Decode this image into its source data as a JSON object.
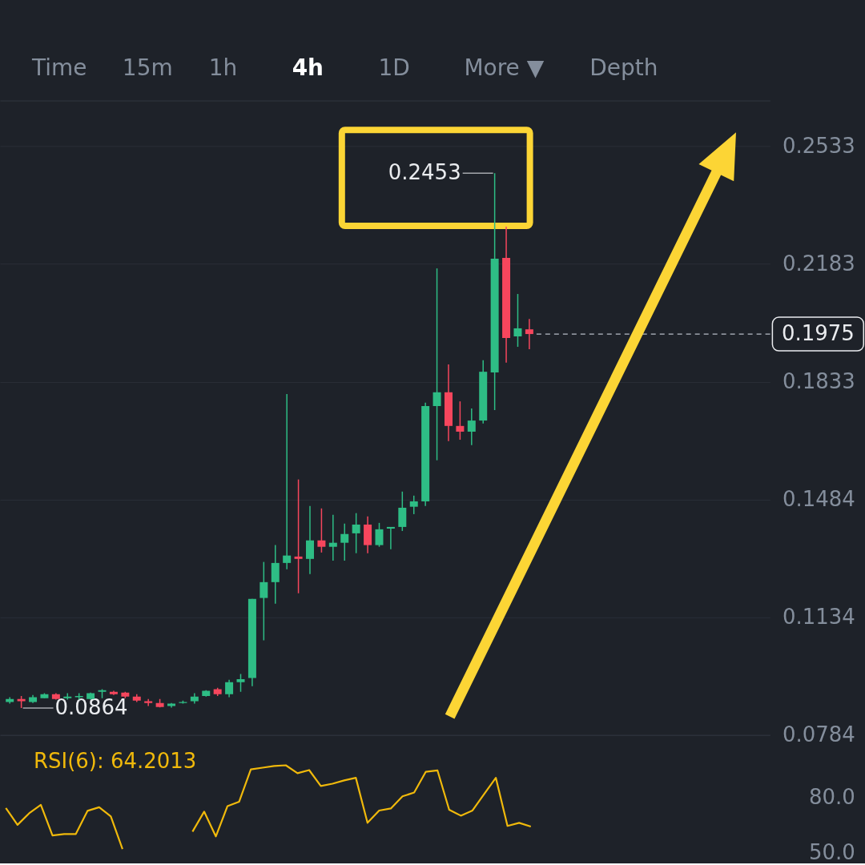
{
  "chart_data": [
    {
      "type": "other",
      "annotations": [
        "Time",
        "15m",
        "1h",
        "4h",
        "1D",
        "More ▼",
        "Depth"
      ],
      "colors": [
        "#848e9c",
        "#848e9c",
        "#848e9c",
        "#ffffff",
        "#848e9c",
        "#848e9c",
        "#848e9c"
      ]
    },
    {
      "type": "candlestick",
      "categories": [
        null,
        null,
        null,
        null,
        null,
        null,
        null,
        null,
        null,
        null,
        null,
        null,
        null,
        null,
        null,
        null,
        null,
        null,
        null,
        null,
        null,
        null,
        null,
        null,
        null,
        null,
        null,
        null,
        null,
        null,
        null,
        null,
        null,
        null,
        null,
        null,
        null,
        null,
        null,
        null,
        null,
        null,
        null,
        null,
        null,
        null,
        null,
        null,
        null,
        null,
        null,
        null,
        null,
        null,
        null,
        null,
        null,
        null,
        null,
        null,
        null,
        null,
        null,
        null,
        null,
        null
      ],
      "ohlc": [
        [
          0.0882,
          0.0896,
          0.0877,
          0.0891
        ],
        [
          0.0891,
          0.09,
          0.0864,
          0.0884
        ],
        [
          0.0882,
          0.0903,
          0.0879,
          0.0896
        ],
        [
          0.0893,
          0.0908,
          0.0893,
          0.0905
        ],
        [
          0.0905,
          0.0908,
          0.0889,
          0.0891
        ],
        [
          0.0893,
          0.0908,
          0.0889,
          0.0898
        ],
        [
          0.0896,
          0.0908,
          0.0889,
          0.09
        ],
        [
          0.0891,
          0.091,
          0.0889,
          0.0908
        ],
        [
          0.0912,
          0.092,
          0.0893,
          0.0917
        ],
        [
          0.0912,
          0.0915,
          0.0903,
          0.0905
        ],
        [
          0.091,
          0.0912,
          0.0893,
          0.0898
        ],
        [
          0.0898,
          0.0905,
          0.0882,
          0.0886
        ],
        [
          0.0884,
          0.0891,
          0.087,
          0.0879
        ],
        [
          0.0879,
          0.0891,
          0.0866,
          0.0867
        ],
        [
          0.087,
          0.0879,
          0.0865,
          0.0877
        ],
        [
          0.0879,
          0.0886,
          0.0877,
          0.0882
        ],
        [
          0.0884,
          0.0908,
          0.0877,
          0.0898
        ],
        [
          0.09,
          0.0917,
          0.0898,
          0.0915
        ],
        [
          0.092,
          0.0924,
          0.09,
          0.0905
        ],
        [
          0.0905,
          0.0948,
          0.0896,
          0.0941
        ],
        [
          0.0941,
          0.0965,
          0.0912,
          0.095
        ],
        [
          0.0953,
          0.1188,
          0.0929,
          0.1188
        ],
        [
          0.1191,
          0.1298,
          0.1065,
          0.1238
        ],
        [
          0.1238,
          0.1348,
          0.1174,
          0.1295
        ],
        [
          0.1295,
          0.1797,
          0.1276,
          0.1317
        ],
        [
          0.1314,
          0.1543,
          0.1205,
          0.1307
        ],
        [
          0.1307,
          0.1464,
          0.1262,
          0.1362
        ],
        [
          0.1362,
          0.1457,
          0.1326,
          0.1343
        ],
        [
          0.1343,
          0.1438,
          0.1302,
          0.1355
        ],
        [
          0.1355,
          0.1412,
          0.1302,
          0.1381
        ],
        [
          0.1383,
          0.1443,
          0.1324,
          0.1409
        ],
        [
          0.1409,
          0.1433,
          0.1324,
          0.1348
        ],
        [
          0.1348,
          0.1414,
          0.1343,
          0.1395
        ],
        [
          0.1397,
          0.1402,
          0.1336,
          0.1402
        ],
        [
          0.1402,
          0.1507,
          0.139,
          0.1459
        ],
        [
          0.1462,
          0.1495,
          0.144,
          0.1478
        ],
        [
          0.1478,
          0.1771,
          0.1464,
          0.1761
        ],
        [
          0.1761,
          0.217,
          0.16,
          0.1802
        ],
        [
          0.1802,
          0.1885,
          0.1657,
          0.1702
        ],
        [
          0.1702,
          0.1775,
          0.1661,
          0.1685
        ],
        [
          0.1685,
          0.1754,
          0.1645,
          0.1718
        ],
        [
          0.1718,
          0.1897,
          0.1709,
          0.1863
        ],
        [
          0.1861,
          0.2453,
          0.1749,
          0.2199
        ],
        [
          0.2201,
          0.2294,
          0.189,
          0.1963
        ],
        [
          0.1968,
          0.2094,
          0.1937,
          0.1992
        ],
        [
          0.1989,
          0.202,
          0.193,
          0.1975
        ],
        null,
        null,
        null,
        null,
        null,
        null,
        null,
        null,
        null,
        null,
        null,
        null,
        null,
        null,
        null,
        null,
        null,
        null,
        null,
        null
      ],
      "colors": [
        "#2ebd85",
        "#f6465d",
        "#2ebd85",
        "#2ebd85",
        "#f6465d",
        "#2ebd85",
        "#2ebd85",
        "#2ebd85",
        "#2ebd85",
        "#f6465d",
        "#f6465d",
        "#f6465d",
        "#f6465d",
        "#f6465d",
        "#2ebd85",
        "#2ebd85",
        "#2ebd85",
        "#2ebd85",
        "#f6465d",
        "#2ebd85",
        "#2ebd85",
        "#2ebd85",
        "#2ebd85",
        "#2ebd85",
        "#2ebd85",
        "#f6465d",
        "#2ebd85",
        "#f6465d",
        "#2ebd85",
        "#2ebd85",
        "#2ebd85",
        "#f6465d",
        "#2ebd85",
        "#2ebd85",
        "#2ebd85",
        "#2ebd85",
        "#2ebd85",
        "#2ebd85",
        "#f6465d",
        "#f6465d",
        "#2ebd85",
        "#2ebd85",
        "#2ebd85",
        "#f6465d",
        "#2ebd85",
        "#f6465d",
        null,
        null,
        null,
        null,
        null,
        null,
        null,
        null,
        null,
        null,
        null,
        null,
        null,
        null,
        null,
        null,
        null,
        null,
        null,
        null
      ],
      "ylim": [
        0.0784,
        0.2669
      ],
      "yticks": [
        0.0784,
        0.1134,
        0.1484,
        0.1833,
        0.2183,
        0.2533
      ],
      "grid": "y",
      "tick_labels": "y",
      "annotations": [
        "0.2453",
        "0.0864"
      ],
      "ref_lines": [
        {
          "axis": "y",
          "value": 0.1975,
          "label": "0.1975",
          "line_style": "dashed",
          "color": "#b7bdc6"
        }
      ]
    },
    {
      "type": "line",
      "title": "RSI(6): 64.2013",
      "categories": [
        null,
        null,
        null,
        null,
        null,
        null,
        null,
        null,
        null,
        null,
        null,
        null,
        null,
        null,
        null,
        null,
        null,
        null,
        null,
        null,
        null,
        null,
        null,
        null,
        null,
        null,
        null,
        null,
        null,
        null,
        null,
        null,
        null,
        null,
        null,
        null,
        null,
        null,
        null,
        null,
        null,
        null,
        null,
        null,
        null,
        null,
        null,
        null,
        null,
        null,
        null,
        null,
        null,
        null,
        null,
        null,
        null,
        null,
        null,
        null,
        null,
        null,
        null,
        null,
        null,
        null
      ],
      "series": [
        {
          "color": "#f0b90b",
          "values": [
            74.3,
            65.1,
            71.4,
            76.0,
            59.3,
            60.1,
            60.1,
            72.7,
            74.7,
            69.7,
            51.9,
            null,
            null,
            null,
            null,
            null,
            61.4,
            72.3,
            58.8,
            75.3,
            77.7,
            95.3,
            96.2,
            97.1,
            97.5,
            93.2,
            94.9,
            86.2,
            87.5,
            89.3,
            90.7,
            66.2,
            72.9,
            74.0,
            80.6,
            82.7,
            94.0,
            94.7,
            73.3,
            70.1,
            72.9,
            81.9,
            90.7,
            64.5,
            66.2,
            64.2,
            null,
            null,
            null,
            null,
            null,
            null,
            null,
            null,
            null,
            null,
            null,
            null,
            null,
            null,
            null,
            null,
            null,
            null,
            null,
            null
          ]
        }
      ],
      "ylim": [
        50,
        114
      ],
      "yticks": [
        {
          "value": 50,
          "label": "50.0"
        },
        {
          "value": 80,
          "label": "80.0"
        }
      ],
      "tick_labels": "y",
      "marker": "none",
      "line_style": "solid"
    }
  ]
}
